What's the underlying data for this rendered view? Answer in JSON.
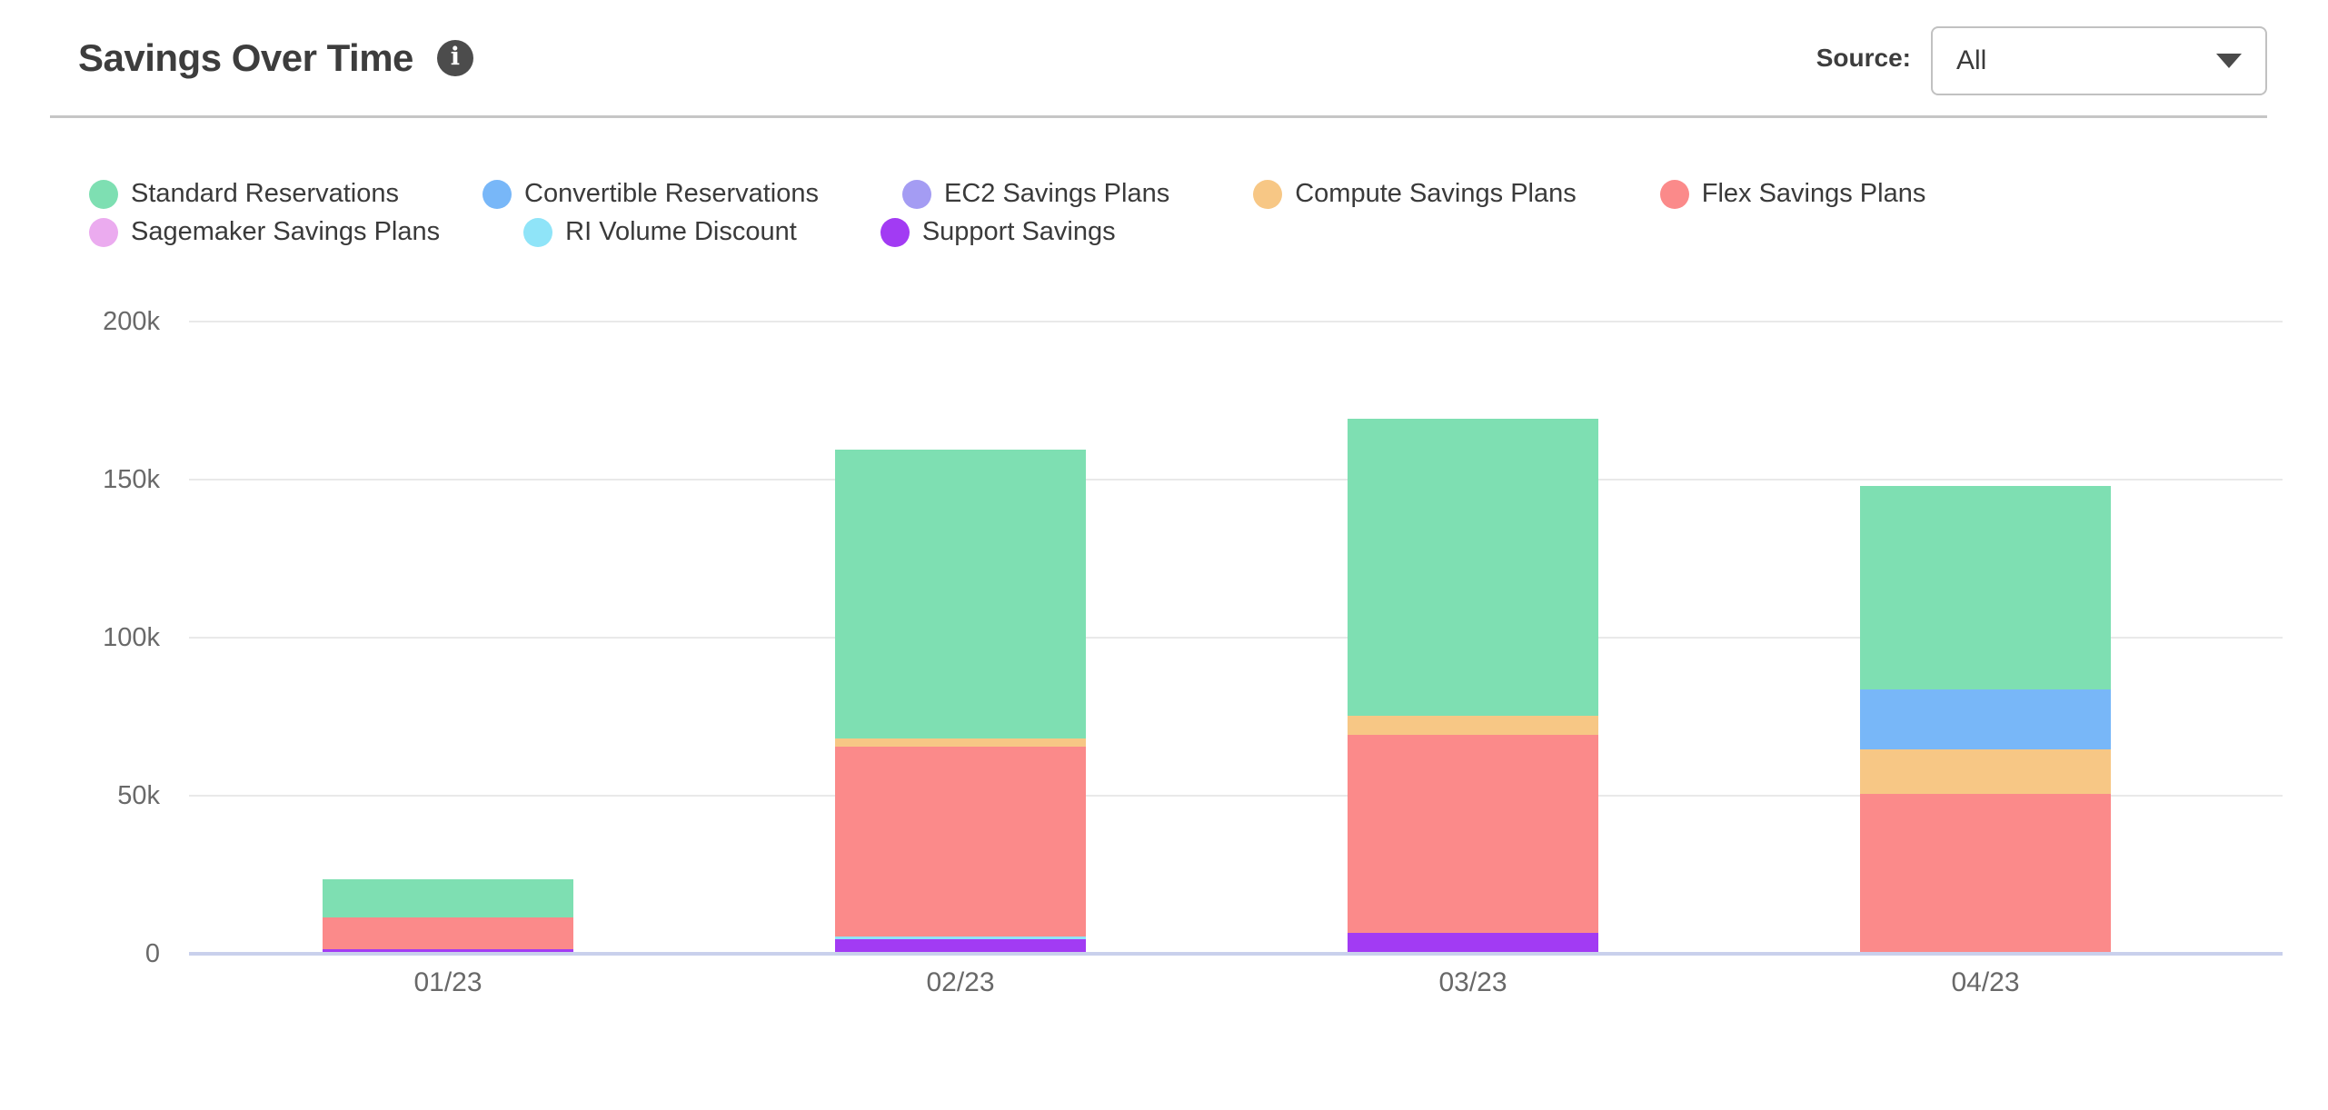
{
  "header": {
    "title": "Savings Over Time",
    "info_glyph": "i",
    "source": {
      "label": "Source:",
      "selected": "All"
    }
  },
  "chart_data": {
    "type": "bar",
    "stacked": true,
    "title": "Savings Over Time",
    "categories": [
      "01/23",
      "02/23",
      "03/23",
      "04/23"
    ],
    "series": [
      {
        "name": "Standard Reservations",
        "color": "#7edfb2",
        "values": [
          12000,
          91500,
          94000,
          64500
        ]
      },
      {
        "name": "Convertible Reservations",
        "color": "#78b7f8",
        "values": [
          0,
          0,
          0,
          19000
        ]
      },
      {
        "name": "EC2 Savings Plans",
        "color": "#a49cf3",
        "values": [
          0,
          0,
          0,
          0
        ]
      },
      {
        "name": "Compute Savings Plans",
        "color": "#f7c785",
        "values": [
          0,
          2500,
          6000,
          14000
        ]
      },
      {
        "name": "Flex Savings Plans",
        "color": "#fb8a8a",
        "values": [
          10000,
          60000,
          62500,
          50000
        ]
      },
      {
        "name": "Sagemaker Savings Plans",
        "color": "#ebabef",
        "values": [
          0,
          0,
          0,
          0
        ]
      },
      {
        "name": "RI Volume Discount",
        "color": "#8fe4f8",
        "values": [
          0,
          1000,
          0,
          0
        ]
      },
      {
        "name": "Support Savings",
        "color": "#a23bf3",
        "values": [
          1000,
          4000,
          6000,
          0
        ]
      }
    ],
    "stack_order_bottom_to_top": [
      "Support Savings",
      "RI Volume Discount",
      "Sagemaker Savings Plans",
      "Flex Savings Plans",
      "Compute Savings Plans",
      "EC2 Savings Plans",
      "Convertible Reservations",
      "Standard Reservations"
    ],
    "y_ticks": [
      {
        "label": "0",
        "value": 0
      },
      {
        "label": "50k",
        "value": 50000
      },
      {
        "label": "100k",
        "value": 100000
      },
      {
        "label": "150k",
        "value": 150000
      },
      {
        "label": "200k",
        "value": 200000
      }
    ],
    "ylim": [
      0,
      200000
    ],
    "grid": "horizontal",
    "legend_position": "top-left",
    "colors_misc": {
      "gridline": "#e9e9e9",
      "zero_line": "#c9d0ec",
      "axis_text": "#696969",
      "header_border": "#c6c6c6"
    }
  }
}
